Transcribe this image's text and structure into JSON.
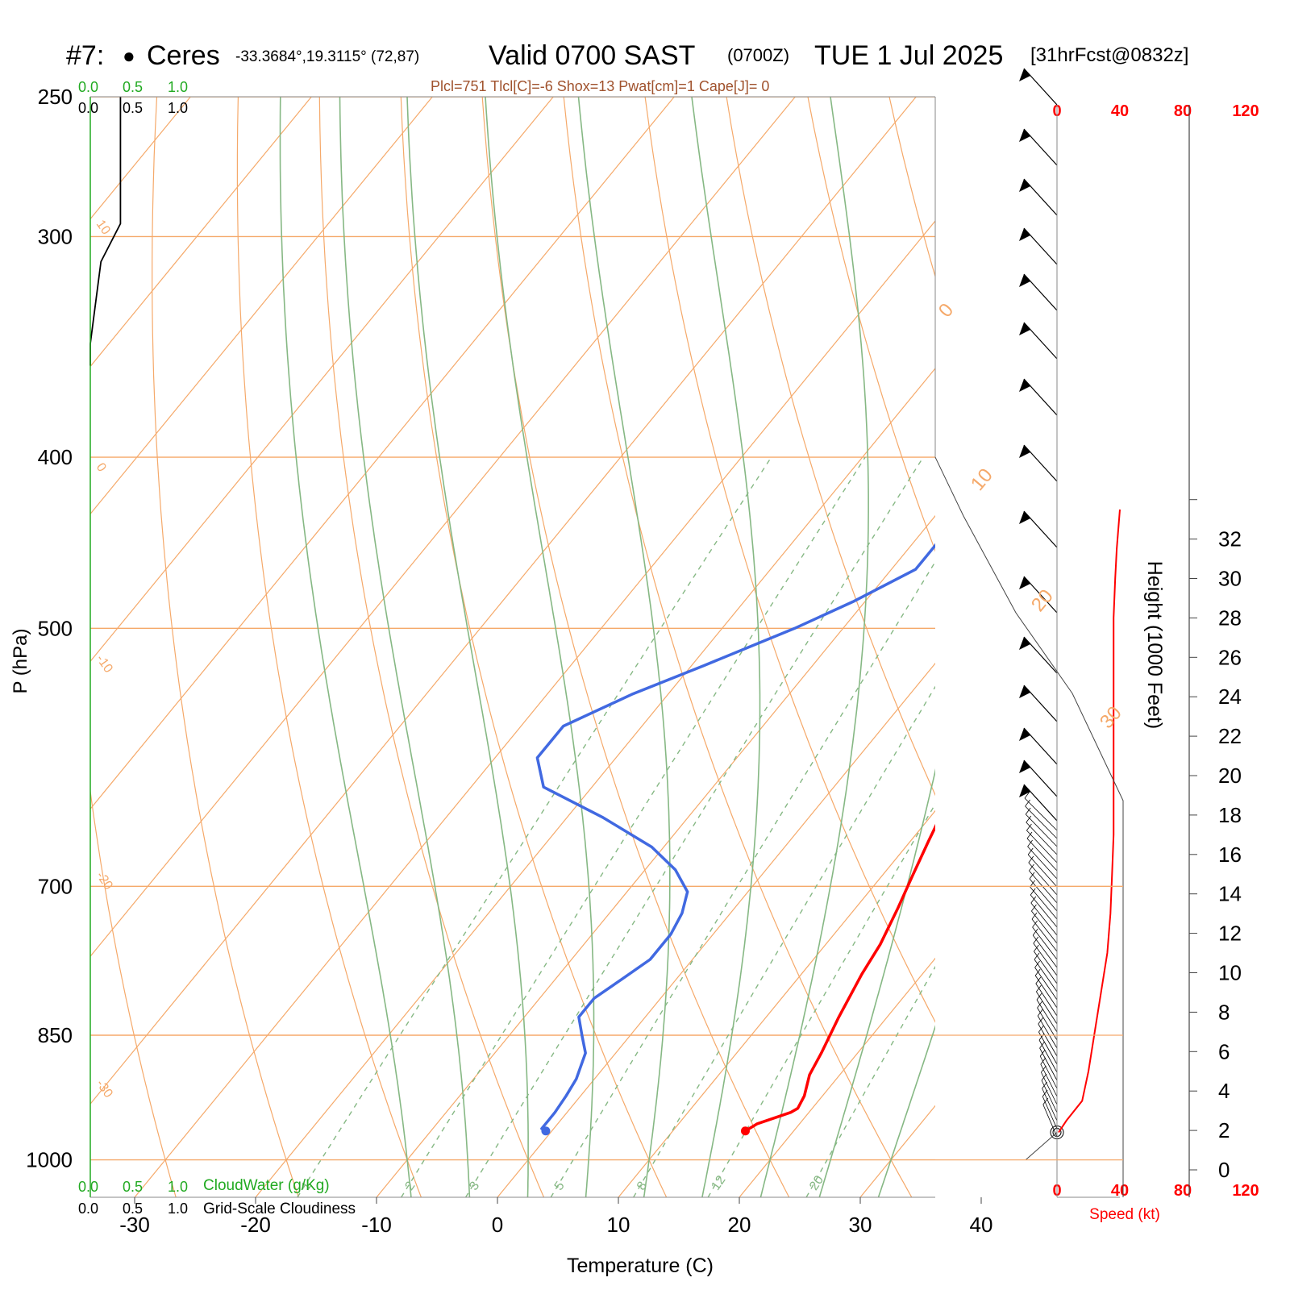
{
  "header": {
    "station_id": "#7:",
    "marker": "●",
    "station_name": "Ceres",
    "coords": "-33.3684°,19.3115° (72,87)",
    "valid": "Valid 0700 SAST",
    "zulu": "(0700Z)",
    "date": "TUE 1 Jul 2025",
    "forecast": "[31hrFcst@0832z]"
  },
  "indices": "Plcl=751 Tlcl[C]=-6 Shox=13 Pwat[cm]=1 Cape[J]= 0",
  "colors": {
    "temperature": "#ff0000",
    "dewpoint": "#4169e1",
    "isotherm": "#f5a96a",
    "dry_adiabat": "#f5a96a",
    "moist_adiabat": "#86b884",
    "mixing_ratio": "#86b884",
    "cloud_water": "#22aa22",
    "speed": "#ff0000"
  },
  "cloud_scale": {
    "water_ticks": [
      "0.0",
      "0.5",
      "1.0"
    ],
    "water_label": "CloudWater (g/Kg)",
    "cover_ticks": [
      "0.0",
      "0.5",
      "1.0"
    ],
    "cover_label": "Grid-Scale Cloudiness"
  },
  "chart_data": {
    "type": "line",
    "title": "",
    "xlabel": "Temperature (C)",
    "ylabel": "P (hPa)",
    "y2label": "Height (1000 Feet)",
    "speed_label": "Speed (kt)",
    "xlim": [
      -34,
      36
    ],
    "ylim": [
      1050,
      250
    ],
    "x_ticks": [
      -30,
      -20,
      -10,
      0,
      10,
      20,
      30,
      40
    ],
    "p_ticks": [
      1000,
      850,
      700,
      500,
      400,
      300,
      250
    ],
    "height_ticks": [
      0,
      2,
      4,
      6,
      8,
      10,
      12,
      14,
      16,
      18,
      20,
      22,
      24,
      26,
      28,
      30,
      32
    ],
    "speed_ticks": [
      0,
      40,
      80,
      120
    ],
    "mixing_ratio_labels": [
      1,
      2,
      3,
      5,
      8,
      12,
      20
    ],
    "dry_adiabat_labels": [
      10,
      0,
      -10,
      -20,
      -30
    ],
    "moist_adiabat_labels": [
      0,
      10,
      20,
      30
    ],
    "series": [
      {
        "name": "Temperature",
        "points": [
          [
            16,
            963
          ],
          [
            16.5,
            954
          ],
          [
            18.5,
            940
          ],
          [
            18.8,
            935
          ],
          [
            18.5,
            920
          ],
          [
            17.5,
            895
          ],
          [
            17.0,
            870
          ],
          [
            16.0,
            830
          ],
          [
            15.0,
            785
          ],
          [
            14.5,
            755
          ],
          [
            13.5,
            720
          ],
          [
            12.5,
            690
          ],
          [
            11.5,
            660
          ],
          [
            10.5,
            630
          ],
          [
            10.0,
            600
          ],
          [
            9.5,
            570
          ],
          [
            9.0,
            540
          ],
          [
            8.5,
            510
          ],
          [
            8.0,
            490
          ],
          [
            7.5,
            465
          ],
          [
            6.0,
            440
          ],
          [
            4.5,
            420
          ],
          [
            3.0,
            400
          ],
          [
            1.5,
            380
          ],
          [
            0,
            360
          ],
          [
            -1.5,
            345
          ],
          [
            -3,
            330
          ],
          [
            -4.5,
            315
          ],
          [
            -5.5,
            303
          ],
          [
            -7,
            290
          ],
          [
            -8.5,
            277
          ],
          [
            -10,
            265
          ],
          [
            -11.5,
            255
          ]
        ]
      },
      {
        "name": "Dewpoint",
        "points": [
          [
            -0.5,
            963
          ],
          [
            -1,
            960
          ],
          [
            -1,
            950
          ],
          [
            -1,
            940
          ],
          [
            -1.2,
            920
          ],
          [
            -1.5,
            900
          ],
          [
            -2.5,
            870
          ],
          [
            -4.0,
            850
          ],
          [
            -5.5,
            830
          ],
          [
            -5.5,
            810
          ],
          [
            -4.5,
            790
          ],
          [
            -3.5,
            770
          ],
          [
            -3.5,
            745
          ],
          [
            -4.0,
            725
          ],
          [
            -5.0,
            705
          ],
          [
            -7.5,
            685
          ],
          [
            -11,
            665
          ],
          [
            -17,
            640
          ],
          [
            -24,
            615
          ],
          [
            -26.5,
            592
          ],
          [
            -26.5,
            568
          ],
          [
            -23,
            545
          ],
          [
            -19,
            525
          ],
          [
            -14,
            500
          ],
          [
            -11,
            483
          ],
          [
            -8,
            463
          ],
          [
            -8,
            445
          ],
          [
            -8.5,
            425
          ],
          [
            -9.5,
            410
          ],
          [
            -11,
            395
          ],
          [
            -12.5,
            378
          ],
          [
            -14,
            360
          ],
          [
            -15.5,
            345
          ],
          [
            -17.5,
            330
          ],
          [
            -19.5,
            315
          ],
          [
            -21.5,
            300
          ],
          [
            -24,
            287
          ],
          [
            -26.5,
            275
          ],
          [
            -28.5,
            265
          ],
          [
            -31,
            255
          ]
        ]
      }
    ],
    "wind_speed": {
      "heights_kft": [
        1.9,
        2.5,
        3.5,
        5,
        7,
        9,
        11,
        13,
        15,
        17,
        19,
        22,
        25,
        28,
        30,
        31.5,
        33.5
      ],
      "speeds_kt": [
        1,
        6,
        16,
        20,
        24,
        28,
        32,
        34,
        35,
        36,
        36,
        36,
        36,
        36,
        37,
        38,
        40
      ]
    },
    "cloudiness": [
      [
        0,
        355
      ],
      [
        0,
        345
      ],
      [
        0.12,
        310
      ],
      [
        0.34,
        295
      ],
      [
        0.34,
        290
      ],
      [
        0.34,
        250
      ]
    ]
  }
}
